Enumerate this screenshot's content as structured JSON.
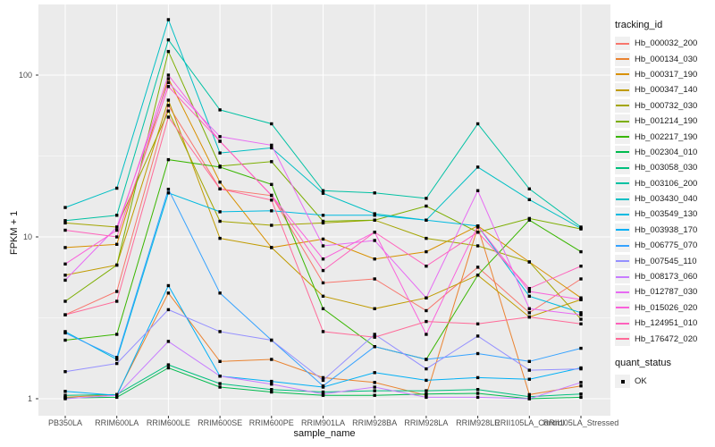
{
  "chart_data": {
    "type": "line",
    "title": "",
    "xlabel": "sample_name",
    "ylabel": "FPKM + 1",
    "y_scale": "log10",
    "y_ticks": [
      1,
      10,
      100
    ],
    "y_minor_ticks": [
      3.162,
      31.62
    ],
    "ylim_px_note": "log axis, decade ~181px",
    "grid": true,
    "panel_bg": "#EBEBEB",
    "grid_color": "#FFFFFF",
    "marker_color": "#000000",
    "legend_position": "right",
    "categories": [
      "PB350LA",
      "RRIM600LA",
      "RRIM600LE",
      "RRIM600SE",
      "RRIM600PE",
      "RRIM901LA",
      "RRIM928BA",
      "RRIM928LA",
      "RRIM928LE",
      "RRII105LA_Control",
      "RRII105LA_Stressed"
    ],
    "series": [
      {
        "name": "Hb_000032_200",
        "color": "#F8766D",
        "values": [
          3.3,
          4.6,
          65,
          19.8,
          18,
          5.2,
          5.5,
          3.5,
          6.5,
          3.4,
          5.5
        ]
      },
      {
        "name": "Hb_000134_030",
        "color": "#EA8331",
        "values": [
          1.02,
          1.06,
          4.5,
          1.7,
          1.75,
          1.35,
          1.26,
          1.05,
          11.5,
          1.06,
          1.2
        ]
      },
      {
        "name": "Hb_000317_190",
        "color": "#D89000",
        "values": [
          8.6,
          9.0,
          95,
          21.8,
          8.6,
          9.7,
          7.3,
          8.1,
          11.7,
          7.0,
          4.2
        ]
      },
      {
        "name": "Hb_000347_140",
        "color": "#C09B00",
        "values": [
          5.8,
          6.7,
          70,
          9.8,
          8.6,
          4.3,
          3.6,
          4.2,
          5.8,
          3.2,
          4.1
        ]
      },
      {
        "name": "Hb_000732_030",
        "color": "#A3A500",
        "values": [
          12.2,
          11.5,
          60,
          12.5,
          11.8,
          12.2,
          12.7,
          9.8,
          8.8,
          7.0,
          3.1
        ]
      },
      {
        "name": "Hb_001214_190",
        "color": "#7CAE00",
        "values": [
          4.0,
          6.7,
          140,
          27.4,
          29.2,
          12.5,
          12.7,
          15.5,
          10.7,
          13.0,
          11.2
        ]
      },
      {
        "name": "Hb_002217_190",
        "color": "#39B600",
        "values": [
          2.3,
          2.5,
          30,
          27.0,
          21.1,
          3.6,
          2.1,
          1.75,
          5.8,
          12.7,
          8.1
        ]
      },
      {
        "name": "Hb_002304_010",
        "color": "#00BB4E",
        "values": [
          1.01,
          1.02,
          1.55,
          1.18,
          1.1,
          1.05,
          1.05,
          1.07,
          1.08,
          1.0,
          1.02
        ]
      },
      {
        "name": "Hb_003058_030",
        "color": "#00BF7D",
        "values": [
          1.05,
          1.06,
          1.62,
          1.24,
          1.14,
          1.1,
          1.12,
          1.12,
          1.14,
          1.03,
          1.07
        ]
      },
      {
        "name": "Hb_003106_200",
        "color": "#00C1A3",
        "values": [
          12.6,
          13.6,
          165,
          61,
          50,
          19.3,
          18.7,
          17.3,
          50,
          19.8,
          11.5
        ]
      },
      {
        "name": "Hb_003430_040",
        "color": "#00BFC4",
        "values": [
          15.2,
          20,
          220,
          33,
          35.5,
          18.6,
          13.9,
          12.7,
          27,
          17,
          11.3
        ]
      },
      {
        "name": "Hb_003549_130",
        "color": "#00BAE0",
        "values": [
          2.6,
          1.75,
          18.7,
          14.3,
          14.5,
          13.6,
          13.6,
          12.7,
          11.7,
          4.3,
          3.4
        ]
      },
      {
        "name": "Hb_003938_170",
        "color": "#00B0F6",
        "values": [
          1.11,
          1.05,
          5.0,
          1.38,
          1.28,
          1.18,
          1.45,
          1.3,
          1.35,
          1.32,
          1.55
        ]
      },
      {
        "name": "Hb_006775_070",
        "color": "#35A2FF",
        "values": [
          2.55,
          1.8,
          19.7,
          4.5,
          2.3,
          1.2,
          2.1,
          1.75,
          1.9,
          1.7,
          2.05
        ]
      },
      {
        "name": "Hb_007545_110",
        "color": "#9590FF",
        "values": [
          1.47,
          1.65,
          3.55,
          2.6,
          2.3,
          1.3,
          2.5,
          1.53,
          2.44,
          1.5,
          1.53
        ]
      },
      {
        "name": "Hb_008173_060",
        "color": "#C77CFF",
        "values": [
          1.0,
          1.05,
          2.26,
          1.38,
          1.23,
          1.07,
          1.18,
          1.02,
          1.02,
          1.0,
          1.26
        ]
      },
      {
        "name": "Hb_012787_030",
        "color": "#E76BF3",
        "values": [
          5.4,
          11.5,
          90,
          41.7,
          36.9,
          8.8,
          9.5,
          4.2,
          19.3,
          3.6,
          3.3
        ]
      },
      {
        "name": "Hb_015026_020",
        "color": "#FA62DB",
        "values": [
          6.8,
          11.0,
          100,
          39,
          18.1,
          7.3,
          10.7,
          2.5,
          11.7,
          4.6,
          4.1
        ]
      },
      {
        "name": "Hb_124951_010",
        "color": "#FF62BC",
        "values": [
          11.0,
          10.0,
          85,
          39,
          18,
          6.2,
          10.7,
          6.6,
          10.7,
          4.8,
          6.6
        ]
      },
      {
        "name": "Hb_176472_020",
        "color": "#FF6A98",
        "values": [
          3.3,
          4.0,
          55,
          19.8,
          16.9,
          2.6,
          2.4,
          3.0,
          2.9,
          3.2,
          2.9
        ]
      }
    ],
    "legend": {
      "color_title": "tracking_id",
      "shape_title": "quant_status",
      "shape_items": [
        {
          "label": "OK",
          "marker": "black-square"
        }
      ]
    }
  }
}
